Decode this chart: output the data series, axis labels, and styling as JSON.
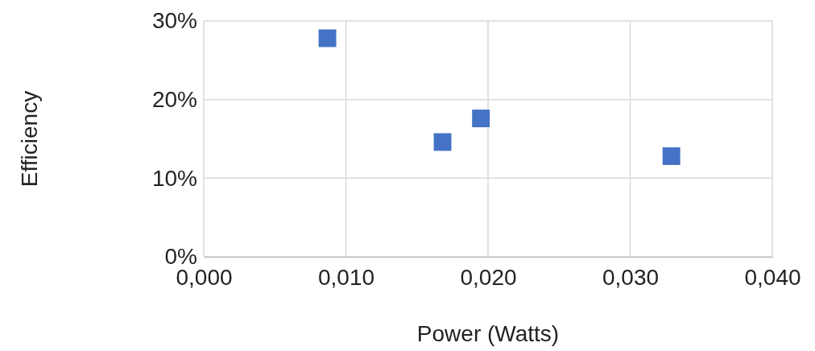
{
  "chart_data": {
    "type": "scatter",
    "xlabel": "Power (Watts)",
    "ylabel": "Efficiency",
    "x": [
      0.0087,
      0.0168,
      0.0195,
      0.0329
    ],
    "series": [
      {
        "color": "#4472c4",
        "values": [
          27.8,
          14.6,
          17.6,
          12.8
        ]
      }
    ],
    "xlim": [
      0,
      0.04
    ],
    "xticks": [
      {
        "value": 0,
        "label": "0,000"
      },
      {
        "value": 0.01,
        "label": "0,010"
      },
      {
        "value": 0.02,
        "label": "0,020"
      },
      {
        "value": 0.03,
        "label": "0,030"
      },
      {
        "value": 0.04,
        "label": "0,040"
      }
    ],
    "ylim": [
      0,
      30
    ],
    "yticks": [
      {
        "value": 0,
        "label": "0%"
      },
      {
        "value": 10,
        "label": "10%"
      },
      {
        "value": 20,
        "label": "20%"
      },
      {
        "value": 30,
        "label": "30%"
      }
    ],
    "grid": true,
    "marker": "square"
  }
}
